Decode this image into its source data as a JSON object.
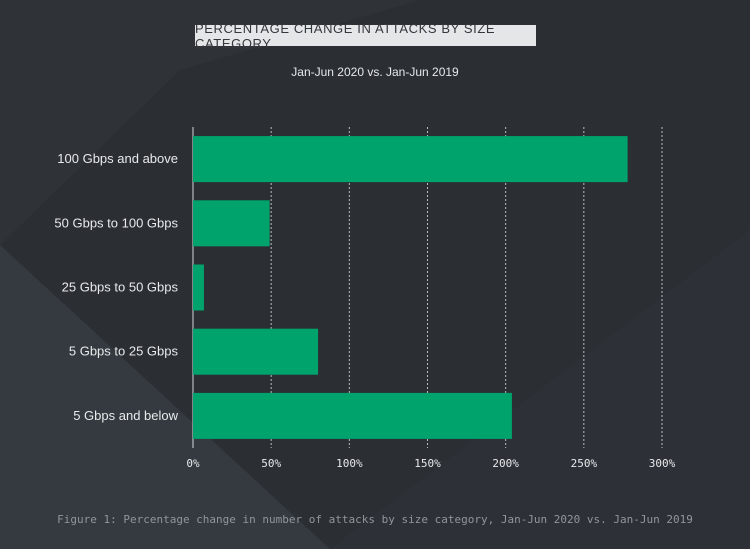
{
  "title": "PERCENTAGE CHANGE IN ATTACKS BY SIZE CATEGORY",
  "subtitle": "Jan-Jun 2020 vs. Jan-Jun 2019",
  "caption": "Figure 1: Percentage change in number of attacks by size category, Jan-Jun 2020 vs. Jan-Jun 2019",
  "colors": {
    "bar": "#00a36c",
    "background": "#2b2f34",
    "grid": "#b9bec2"
  },
  "chart_data": {
    "type": "bar",
    "orientation": "horizontal",
    "categories": [
      "100 Gbps and above",
      "50 Gbps to 100 Gbps",
      "25 Gbps to 50 Gbps",
      "5 Gbps to 25 Gbps",
      "5 Gbps and below"
    ],
    "values": [
      278,
      49,
      7,
      80,
      204
    ],
    "xlim": [
      0,
      300
    ],
    "xticks": [
      "0%",
      "50%",
      "100%",
      "150%",
      "200%",
      "250%",
      "300%"
    ],
    "grid": true,
    "legend": "none"
  }
}
